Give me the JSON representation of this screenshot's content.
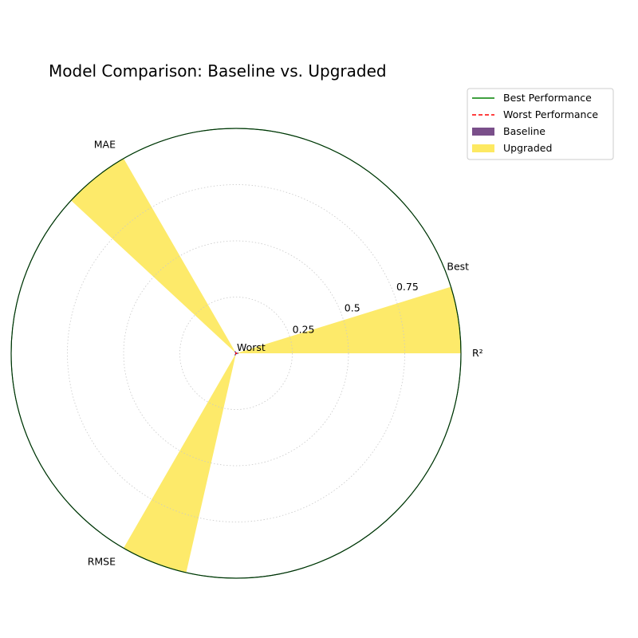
{
  "chart_data": {
    "type": "polar-bar",
    "title": "Model Comparison: Baseline vs. Upgraded",
    "axes": [
      "R²",
      "MAE",
      "RMSE"
    ],
    "rlim": [
      0,
      1
    ],
    "r_ticks": [
      "0.25",
      "0.5",
      "0.75"
    ],
    "r_tick_values": [
      0.25,
      0.5,
      0.75
    ],
    "ring_labels": {
      "best": "Best",
      "worst": "Worst"
    },
    "grid": true,
    "legend_position": "upper right, outside plot",
    "series": [
      {
        "name": "Baseline",
        "values": [
          0,
          0,
          0
        ],
        "color": "#7a4f8a",
        "type": "bar"
      },
      {
        "name": "Upgraded",
        "values": [
          1,
          1,
          1
        ],
        "color": "#fde962",
        "type": "bar"
      }
    ],
    "reference_lines": [
      {
        "name": "Best Performance",
        "value": 1,
        "color": "#008000",
        "style": "solid"
      },
      {
        "name": "Worst Performance",
        "value": 0,
        "color": "#ff0000",
        "style": "dashed"
      }
    ]
  }
}
